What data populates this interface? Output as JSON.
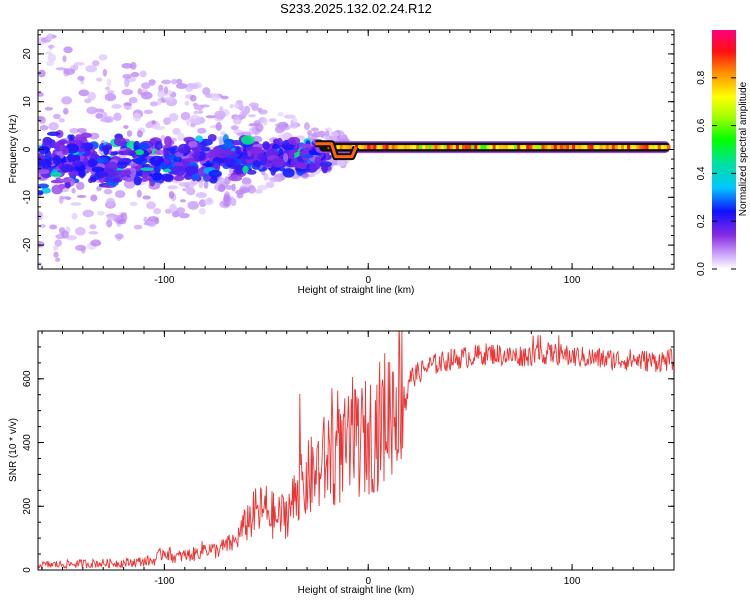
{
  "title": "S233.2025.132.02.24.R12",
  "chart_data": [
    {
      "type": "heatmap",
      "xlabel": "Height of straight line (km)",
      "ylabel": "Frequency (Hz)",
      "xlim": [
        -162,
        150
      ],
      "ylim": [
        -25,
        25
      ],
      "x_ticks": [
        -100,
        0,
        100
      ],
      "y_ticks": [
        -20,
        -10,
        0,
        10,
        20
      ],
      "colorbar": {
        "label": "Normalized spectral amplitude",
        "range": [
          0,
          1
        ],
        "ticks": [
          0.0,
          0.2,
          0.4,
          0.6,
          0.8
        ]
      },
      "signal_line": {
        "x_start": -20,
        "x_end": 148,
        "frequency": 0.5,
        "amplitude": 0.95
      },
      "scatter_band": {
        "x_start": -162,
        "x_end": -20,
        "center_frequency": -1,
        "spread": 12
      }
    },
    {
      "type": "line",
      "xlabel": "Height of straight line (km)",
      "ylabel": "SNR (10 * v/v)",
      "xlim": [
        -162,
        150
      ],
      "ylim": [
        0,
        750
      ],
      "x_ticks": [
        -100,
        0,
        100
      ],
      "y_ticks": [
        0,
        200,
        400,
        600
      ],
      "series": [
        {
          "name": "SNR",
          "color": "#ee3333",
          "x": [
            -162,
            -140,
            -120,
            -105,
            -100,
            -95,
            -85,
            -80,
            -75,
            -65,
            -60,
            -55,
            -50,
            -45,
            -40,
            -35,
            -30,
            -25,
            -20,
            -15,
            -10,
            -5,
            0,
            5,
            10,
            15,
            20,
            25,
            30,
            35,
            40,
            50,
            60,
            70,
            80,
            90,
            100,
            110,
            120,
            130,
            140,
            150
          ],
          "values": [
            15,
            20,
            22,
            30,
            60,
            40,
            50,
            70,
            60,
            90,
            150,
            180,
            190,
            160,
            180,
            230,
            280,
            310,
            350,
            360,
            380,
            400,
            420,
            450,
            500,
            560,
            600,
            620,
            640,
            650,
            660,
            670,
            680,
            670,
            675,
            680,
            670,
            665,
            660,
            660,
            655,
            660
          ]
        }
      ]
    }
  ]
}
